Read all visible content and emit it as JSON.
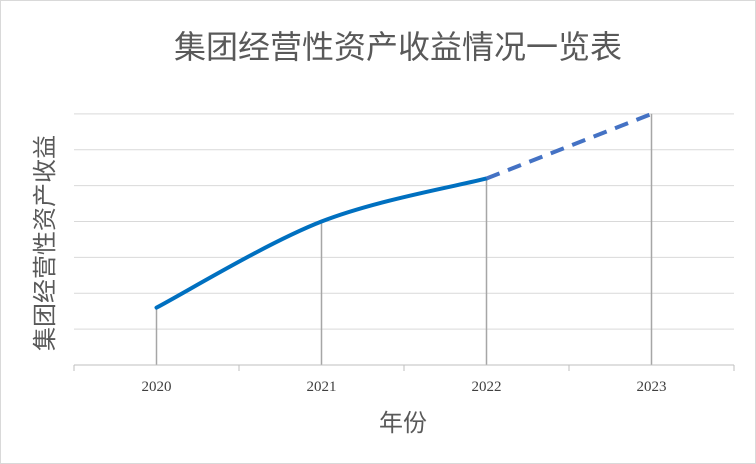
{
  "chart_data": {
    "type": "line",
    "title": "集团经营性资产收益情况一览表",
    "xlabel": "年份",
    "ylabel": "集团经营性资产收益",
    "categories": [
      "2020",
      "2021",
      "2022",
      "2023"
    ],
    "series": [
      {
        "values": [
          1.6,
          4.0,
          5.2,
          7.0
        ],
        "color": "#0070C0",
        "segments": [
          {
            "from": "2020",
            "to": "2022",
            "style": "solid",
            "smooth": true
          },
          {
            "from": "2022",
            "to": "2023",
            "style": "dashed",
            "color": "#4472C4"
          }
        ]
      }
    ],
    "ylim": [
      0,
      7.5
    ],
    "y_gridlines": [
      0,
      1,
      2,
      3,
      4,
      5,
      6,
      7
    ],
    "y_tick_labels_shown": false,
    "drop_lines": true,
    "grid": true,
    "legend": "none"
  }
}
